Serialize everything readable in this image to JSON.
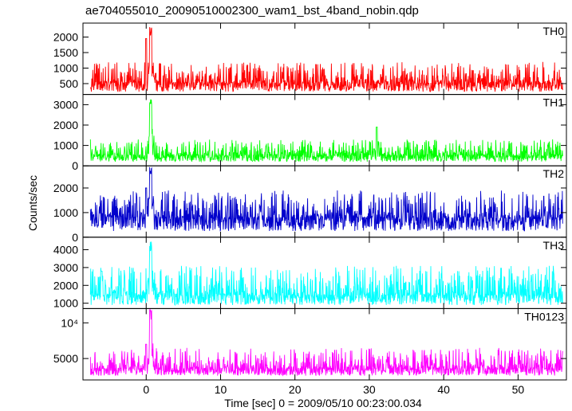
{
  "chart_data": {
    "type": "line",
    "title": "ae704055010_20090510002300_wam1_bst_4band_nobin.qdp",
    "xlabel": "Time [sec] 0 = 2009/05/10 00:23:00.034",
    "ylabel": "Counts/sec",
    "xlim": [
      -8.5,
      56.5
    ],
    "x_ticks": [
      0,
      10,
      20,
      30,
      40,
      50
    ],
    "x_tick_labels": [
      "0",
      "10",
      "20",
      "30",
      "40",
      "50"
    ],
    "grid": false,
    "noise_seed": [
      1,
      2,
      3,
      4,
      5
    ],
    "panels": [
      {
        "name": "TH0",
        "color": "#ff0000",
        "ylim": [
          150,
          2450
        ],
        "y_ticks": [
          500,
          1000,
          1500,
          2000
        ],
        "y_tick_labels": [
          "500",
          "1000",
          "1500",
          "2000"
        ],
        "baseline": 520,
        "envelope_low": 240,
        "envelope_high": 1200,
        "burst_time": 0.6,
        "burst_peak": 2400,
        "secondary_peak_time": 0.0,
        "secondary_peak": 1950
      },
      {
        "name": "TH1",
        "color": "#00ff00",
        "ylim": [
          0,
          3500
        ],
        "y_ticks": [
          0,
          1000,
          2000,
          3000
        ],
        "y_tick_labels": [
          "0",
          "1000",
          "2000",
          "3000"
        ],
        "baseline": 520,
        "envelope_low": 200,
        "envelope_high": 1300,
        "burst_time": 0.6,
        "burst_peak": 3400,
        "secondary_peak_time": 31.0,
        "secondary_peak": 1900
      },
      {
        "name": "TH2",
        "color": "#0000cc",
        "ylim": [
          0,
          2900
        ],
        "y_ticks": [
          0,
          1000,
          2000
        ],
        "y_tick_labels": [
          "0",
          "1000",
          "2000"
        ],
        "baseline": 800,
        "envelope_low": 250,
        "envelope_high": 1900,
        "burst_time": 0.6,
        "burst_peak": 2900,
        "secondary_peak_time": 0.0,
        "secondary_peak": 2000
      },
      {
        "name": "TH3",
        "color": "#00ffff",
        "ylim": [
          700,
          4700
        ],
        "y_ticks": [
          1000,
          2000,
          3000,
          4000
        ],
        "y_tick_labels": [
          "1000",
          "2000",
          "3000",
          "4000"
        ],
        "baseline": 1450,
        "envelope_low": 900,
        "envelope_high": 3100,
        "burst_time": 0.6,
        "burst_peak": 4600,
        "secondary_peak_time": -6.0,
        "secondary_peak": 2800
      },
      {
        "name": "TH0123",
        "color": "#ff00ff",
        "ylim": [
          2000,
          12000
        ],
        "y_ticks": [
          5000,
          10000
        ],
        "y_tick_labels": [
          "5000",
          "10⁴"
        ],
        "baseline": 3600,
        "envelope_low": 2600,
        "envelope_high": 6500,
        "burst_time": 0.6,
        "burst_peak": 12000,
        "secondary_peak_time": 0.0,
        "secondary_peak": 7000
      }
    ]
  }
}
